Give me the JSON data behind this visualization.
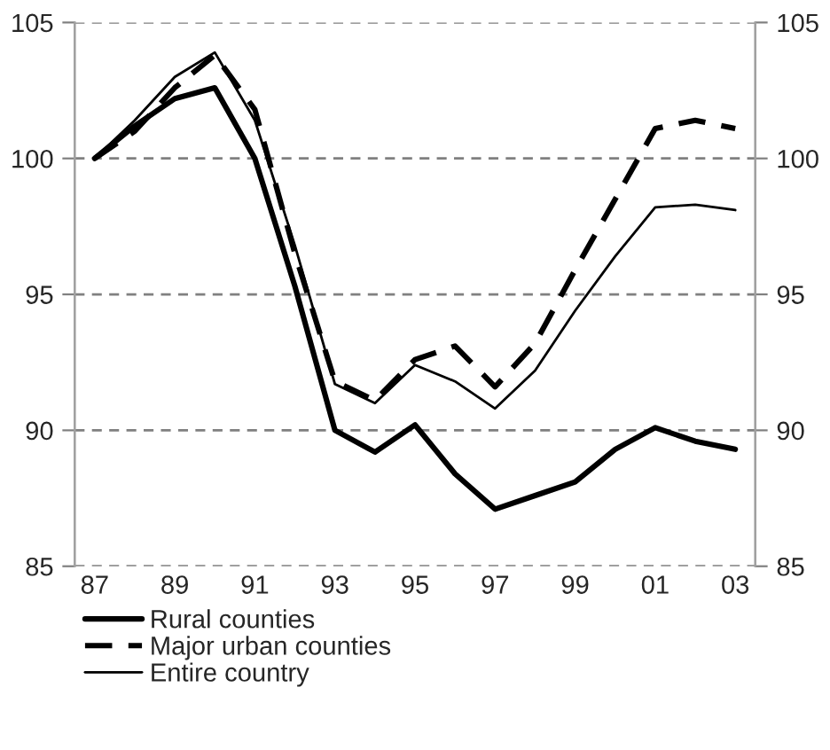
{
  "chart_data": {
    "type": "line",
    "categories": [
      "87",
      null,
      "89",
      null,
      "91",
      null,
      "93",
      null,
      "95",
      null,
      "97",
      null,
      "99",
      null,
      "01",
      null,
      "03"
    ],
    "series": [
      {
        "name": "Rural counties",
        "color": "#000000",
        "line_style": "solid",
        "values": [
          100,
          101.2,
          102.2,
          102.6,
          100,
          95.3,
          90,
          89.2,
          90.2,
          88.4,
          87.1,
          87.6,
          88.1,
          89.3,
          90.1,
          89.6,
          89.3
        ]
      },
      {
        "name": "Major urban counties",
        "color": "#000000",
        "line_style": "dashed",
        "values": [
          100,
          101,
          102.6,
          103.8,
          101.8,
          96.5,
          91.8,
          91.1,
          92.6,
          93.1,
          91.6,
          93.2,
          95.9,
          98.5,
          101.1,
          101.4,
          101.1
        ]
      },
      {
        "name": "Entire country",
        "color": "#000000",
        "line_style": "solid",
        "values": [
          100,
          101.4,
          103,
          103.9,
          101.4,
          96.8,
          91.7,
          91.0,
          92.4,
          91.8,
          90.8,
          92.2,
          94.4,
          96.4,
          98.2,
          98.3,
          98.1
        ]
      }
    ],
    "ylim": [
      85,
      105
    ],
    "yticks": [
      85,
      90,
      95,
      100,
      105
    ],
    "y2lim": [
      85,
      105
    ],
    "y2ticks": [
      85,
      90,
      95,
      100,
      105
    ],
    "grid": "y",
    "legend": "bottom",
    "marker": "none"
  }
}
